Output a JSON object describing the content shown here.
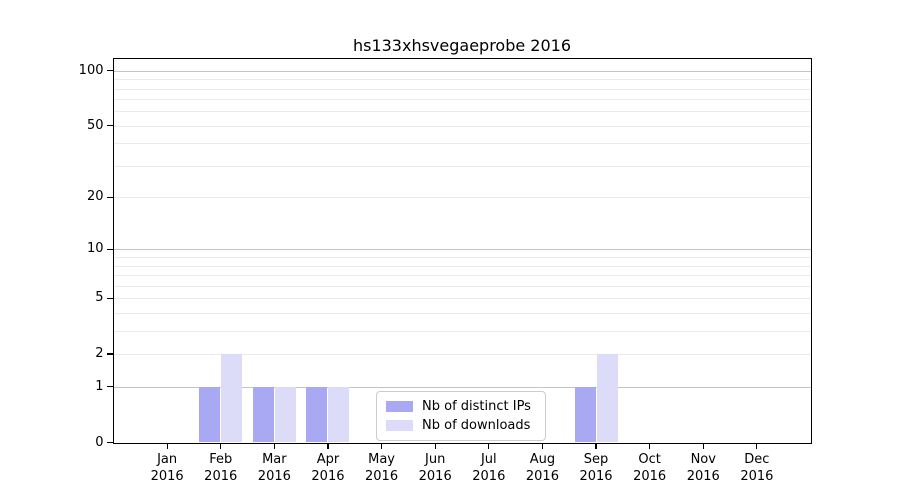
{
  "chart_data": {
    "type": "bar",
    "title": "hs133xhsvegaeprobe 2016",
    "months": [
      "Jan",
      "Feb",
      "Mar",
      "Apr",
      "May",
      "Jun",
      "Jul",
      "Aug",
      "Sep",
      "Oct",
      "Nov",
      "Dec"
    ],
    "year": "2016",
    "categories": [
      "Jan 2016",
      "Feb 2016",
      "Mar 2016",
      "Apr 2016",
      "May 2016",
      "Jun 2016",
      "Jul 2016",
      "Aug 2016",
      "Sep 2016",
      "Oct 2016",
      "Nov 2016",
      "Dec 2016"
    ],
    "series": [
      {
        "name": "Nb of distinct IPs",
        "color": "#a9a9f3",
        "values": [
          0,
          1,
          1,
          1,
          0,
          0,
          0,
          0,
          1,
          0,
          0,
          0
        ]
      },
      {
        "name": "Nb of downloads",
        "color": "#dcdcf8",
        "values": [
          0,
          2,
          1,
          1,
          0,
          0,
          0,
          0,
          2,
          0,
          0,
          0
        ]
      }
    ],
    "yscale": "log1p",
    "y_ticks": [
      0,
      1,
      2,
      5,
      10,
      20,
      50,
      100
    ],
    "ylim": [
      0,
      116
    ],
    "grid": {
      "major_values": [
        1,
        10,
        100
      ],
      "minor_values": [
        2,
        3,
        4,
        5,
        6,
        7,
        8,
        9,
        20,
        30,
        40,
        50,
        60,
        70,
        80,
        90
      ],
      "major_color": "#c4c4c4",
      "minor_color": "#ebebeb"
    },
    "legend_position": "lower center",
    "axis_color": "#000000",
    "background": "#ffffff"
  }
}
